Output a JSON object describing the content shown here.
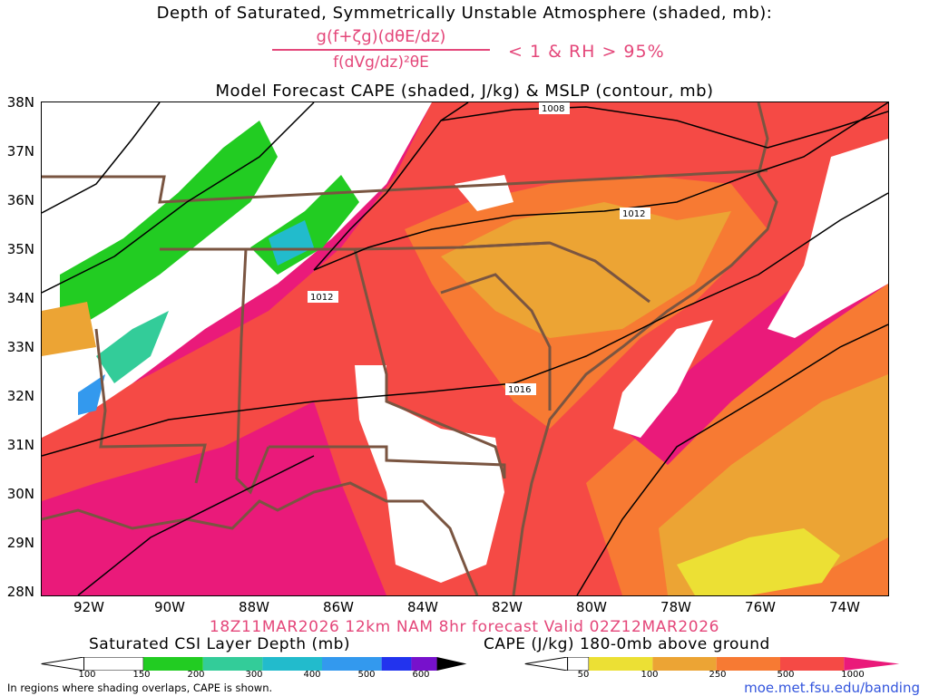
{
  "header": {
    "title1": "Depth of Saturated, Symmetrically Unstable Atmosphere (shaded, mb):",
    "formula_numerator": "g(f+ζg)(dθE/dz)",
    "formula_denominator": "f(dVg/dz)²θE",
    "criteria": "< 1 & RH > 95%",
    "title2": "Model Forecast CAPE (shaded, J/kg) & MSLP (contour, mb)"
  },
  "map": {
    "lat_labels": [
      "38N",
      "37N",
      "36N",
      "35N",
      "34N",
      "33N",
      "32N",
      "31N",
      "30N",
      "29N",
      "28N"
    ],
    "lon_labels": [
      "92W",
      "90W",
      "88W",
      "86W",
      "84W",
      "82W",
      "80W",
      "78W",
      "76W",
      "74W"
    ],
    "extent": {
      "lon_min": -93,
      "lon_max": -73,
      "lat_min": 28,
      "lat_max": 38
    },
    "isobars": [
      {
        "label": "1008"
      },
      {
        "label": "1012"
      },
      {
        "label": "1012"
      },
      {
        "label": "1016"
      }
    ]
  },
  "footer": {
    "valid": "18Z11MAR2026 12km NAM 8hr forecast Valid 02Z12MAR2026",
    "csi_title": "Saturated CSI Layer Depth (mb)",
    "cape_title": "CAPE (J/kg) 180-0mb above ground",
    "csi_ticks": [
      "100",
      "150",
      "200",
      "300",
      "400",
      "500",
      "600"
    ],
    "csi_colors": [
      "#ffffff",
      "#22cc22",
      "#33cc99",
      "#22bbcc",
      "#3399ee",
      "#2233ee",
      "#7711cc",
      "#000000"
    ],
    "cape_ticks": [
      "50",
      "100",
      "250",
      "500",
      "1000"
    ],
    "cape_colors": [
      "#ffffff",
      "#ece034",
      "#eca434",
      "#f77a33",
      "#f54a45",
      "#ea1a7a"
    ],
    "note": "In regions where shading overlaps, CAPE is shown.",
    "credit": "moe.met.fsu.edu/banding"
  }
}
